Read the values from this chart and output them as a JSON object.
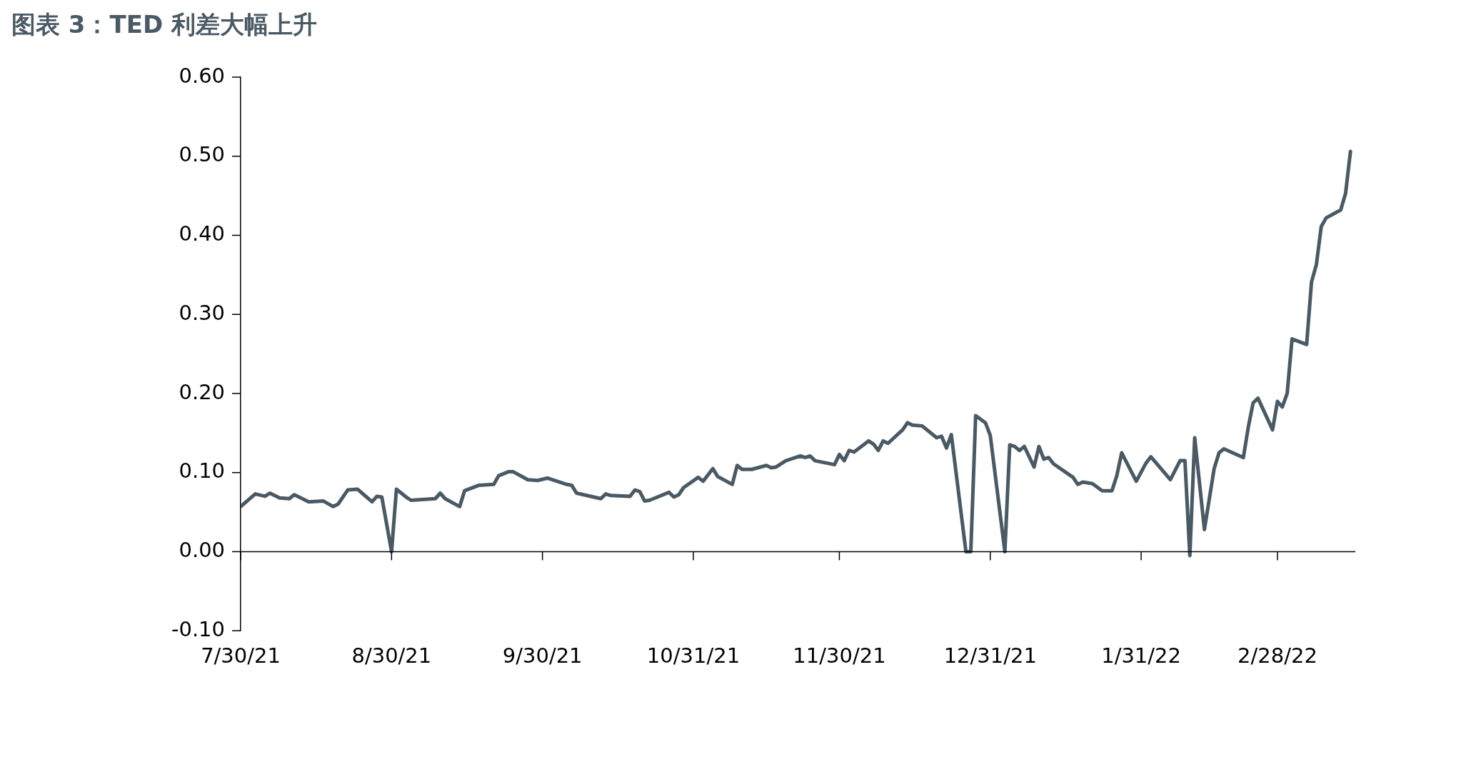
{
  "chart_data": {
    "type": "line",
    "title": "图表 3：TED 利差大幅上升",
    "x": [
      "2021-07-30",
      "2021-08-02",
      "2021-08-04",
      "2021-08-05",
      "2021-08-07",
      "2021-08-09",
      "2021-08-10",
      "2021-08-11",
      "2021-08-13",
      "2021-08-16",
      "2021-08-18",
      "2021-08-19",
      "2021-08-21",
      "2021-08-23",
      "2021-08-26",
      "2021-08-27",
      "2021-08-28",
      "2021-08-30",
      "2021-08-31",
      "2021-09-02",
      "2021-09-03",
      "2021-09-08",
      "2021-09-09",
      "2021-09-10",
      "2021-09-13",
      "2021-09-14",
      "2021-09-17",
      "2021-09-20",
      "2021-09-21",
      "2021-09-23",
      "2021-09-24",
      "2021-09-27",
      "2021-09-29",
      "2021-10-01",
      "2021-10-05",
      "2021-10-06",
      "2021-10-07",
      "2021-10-12",
      "2021-10-13",
      "2021-10-14",
      "2021-10-18",
      "2021-10-19",
      "2021-10-20",
      "2021-10-21",
      "2021-10-22",
      "2021-10-26",
      "2021-10-27",
      "2021-10-28",
      "2021-10-29",
      "2021-11-01",
      "2021-11-02",
      "2021-11-04",
      "2021-11-05",
      "2021-11-08",
      "2021-11-09",
      "2021-11-10",
      "2021-11-12",
      "2021-11-15",
      "2021-11-16",
      "2021-11-17",
      "2021-11-19",
      "2021-11-22",
      "2021-11-23",
      "2021-11-24",
      "2021-11-25",
      "2021-11-29",
      "2021-11-30",
      "2021-12-01",
      "2021-12-02",
      "2021-12-03",
      "2021-12-06",
      "2021-12-07",
      "2021-12-08",
      "2021-12-09",
      "2021-12-10",
      "2021-12-13",
      "2021-12-14",
      "2021-12-15",
      "2021-12-17",
      "2021-12-20",
      "2021-12-21",
      "2021-12-22",
      "2021-12-23",
      "2021-12-26",
      "2021-12-27",
      "2021-12-28",
      "2021-12-30",
      "2021-12-31",
      "2022-01-03",
      "2022-01-04",
      "2022-01-05",
      "2022-01-06",
      "2022-01-07",
      "2022-01-09",
      "2022-01-10",
      "2022-01-11",
      "2022-01-12",
      "2022-01-13",
      "2022-01-17",
      "2022-01-18",
      "2022-01-19",
      "2022-01-21",
      "2022-01-23",
      "2022-01-25",
      "2022-01-26",
      "2022-01-27",
      "2022-01-30",
      "2022-02-01",
      "2022-02-02",
      "2022-02-06",
      "2022-02-08",
      "2022-02-09",
      "2022-02-10",
      "2022-02-11",
      "2022-02-13",
      "2022-02-15",
      "2022-02-16",
      "2022-02-17",
      "2022-02-21",
      "2022-02-22",
      "2022-02-23",
      "2022-02-24",
      "2022-02-27",
      "2022-02-28",
      "2022-03-01",
      "2022-03-02",
      "2022-03-03",
      "2022-03-06",
      "2022-03-07",
      "2022-03-08",
      "2022-03-09",
      "2022-03-10",
      "2022-03-13",
      "2022-03-14",
      "2022-03-15"
    ],
    "series": [
      {
        "color": "#4a5a64",
        "values": [
          0.057,
          0.073,
          0.07,
          0.074,
          0.068,
          0.067,
          0.072,
          0.069,
          0.063,
          0.064,
          0.057,
          0.06,
          0.078,
          0.079,
          0.063,
          0.07,
          0.069,
          0.0,
          0.079,
          0.069,
          0.065,
          0.067,
          0.074,
          0.067,
          0.057,
          0.077,
          0.084,
          0.085,
          0.096,
          0.101,
          0.101,
          0.091,
          0.09,
          0.093,
          0.085,
          0.084,
          0.074,
          0.067,
          0.073,
          0.071,
          0.07,
          0.078,
          0.076,
          0.064,
          0.065,
          0.075,
          0.069,
          0.072,
          0.081,
          0.094,
          0.089,
          0.105,
          0.095,
          0.085,
          0.109,
          0.104,
          0.104,
          0.109,
          0.106,
          0.107,
          0.115,
          0.121,
          0.119,
          0.121,
          0.115,
          0.11,
          0.123,
          0.115,
          0.128,
          0.126,
          0.14,
          0.136,
          0.128,
          0.14,
          0.137,
          0.154,
          0.163,
          0.16,
          0.159,
          0.144,
          0.146,
          0.131,
          0.148,
          0.0,
          0.0,
          0.172,
          0.163,
          0.147,
          0.0,
          0.135,
          0.133,
          0.128,
          0.133,
          0.107,
          0.133,
          0.117,
          0.119,
          0.111,
          0.094,
          0.085,
          0.088,
          0.086,
          0.077,
          0.077,
          0.096,
          0.125,
          0.089,
          0.112,
          0.12,
          0.091,
          0.115,
          0.115,
          -0.005,
          0.144,
          0.028,
          0.105,
          0.125,
          0.13,
          0.119,
          0.157,
          0.188,
          0.194,
          0.154,
          0.19,
          0.183,
          0.2,
          0.269,
          0.262,
          0.341,
          0.363,
          0.411,
          0.422,
          0.432,
          0.453,
          0.506
        ]
      }
    ],
    "xlim": [
      "2021-07-30",
      "2022-03-16"
    ],
    "xticks": [
      {
        "value": "2021-07-30",
        "label": "7/30/21"
      },
      {
        "value": "2021-08-30",
        "label": "8/30/21"
      },
      {
        "value": "2021-09-30",
        "label": "9/30/21"
      },
      {
        "value": "2021-10-31",
        "label": "10/31/21"
      },
      {
        "value": "2021-11-30",
        "label": "11/30/21"
      },
      {
        "value": "2021-12-31",
        "label": "12/31/21"
      },
      {
        "value": "2022-01-31",
        "label": "1/31/22"
      },
      {
        "value": "2022-02-28",
        "label": "2/28/22"
      }
    ],
    "ylim": [
      -0.1,
      0.6
    ],
    "yticks": [
      {
        "value": -0.1,
        "label": "-0.10"
      },
      {
        "value": 0,
        "label": "0.00"
      },
      {
        "value": 0.1,
        "label": "0.10"
      },
      {
        "value": 0.2,
        "label": "0.20"
      },
      {
        "value": 0.3,
        "label": "0.30"
      },
      {
        "value": 0.4,
        "label": "0.40"
      },
      {
        "value": 0.5,
        "label": "0.50"
      },
      {
        "value": 0.6,
        "label": "0.60"
      }
    ],
    "ref_lines": [
      {
        "axis": "y",
        "value": 0,
        "color": "#000000"
      }
    ],
    "grid": false,
    "legend": false,
    "marker": "none",
    "line_style": "solid"
  }
}
